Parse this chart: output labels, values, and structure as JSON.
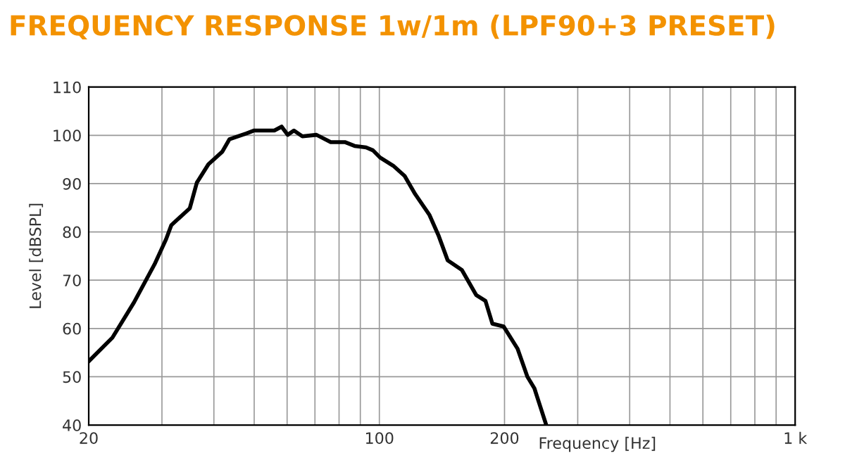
{
  "chart_data": {
    "type": "line",
    "title": "FREQUENCY RESPONSE 1w/1m (LPF90+3 PRESET)",
    "xlabel": "Frequency [Hz]",
    "ylabel": "Level [dBSPL]",
    "log": "x",
    "grid": true,
    "marker": "none",
    "line_style": "solid",
    "xlim": [
      20,
      1000
    ],
    "ylim": [
      40,
      110
    ],
    "xticks": [
      20,
      {
        "value": 30,
        "label": null
      },
      {
        "value": 40,
        "label": null
      },
      {
        "value": 50,
        "label": null
      },
      {
        "value": 60,
        "label": null
      },
      {
        "value": 70,
        "label": null
      },
      {
        "value": 80,
        "label": null
      },
      {
        "value": 90,
        "label": null
      },
      100,
      200,
      {
        "value": 300,
        "label": null
      },
      {
        "value": 400,
        "label": null
      },
      {
        "value": 500,
        "label": null
      },
      {
        "value": 600,
        "label": null
      },
      {
        "value": 700,
        "label": null
      },
      {
        "value": 800,
        "label": null
      },
      {
        "value": 900,
        "label": null
      },
      {
        "value": 1000,
        "label": "1 k"
      }
    ],
    "yticks": [
      40,
      50,
      60,
      70,
      80,
      90,
      100,
      110
    ],
    "x": [
      20,
      22.8,
      25.7,
      28.8,
      30.7,
      31.6,
      35,
      36.4,
      38.8,
      41.9,
      43.6,
      47.9,
      50,
      55.9,
      58.2,
      60.2,
      62.3,
      65.3,
      70.6,
      76.4,
      82.6,
      87.2,
      92.9,
      96.5,
      100.4,
      108,
      115,
      122,
      132,
      139,
      146,
      158,
      171,
      180,
      187,
      199,
      215,
      227,
      236,
      252
    ],
    "series": [
      {
        "color": "#000000",
        "values": [
          53.2,
          58.1,
          65.4,
          73.3,
          78.5,
          81.4,
          84.9,
          90.2,
          94,
          96.6,
          99.2,
          100.4,
          101,
          101,
          101.8,
          100.1,
          101,
          99.8,
          100.1,
          98.6,
          98.6,
          97.8,
          97.5,
          96.9,
          95.4,
          93.7,
          91.6,
          87.8,
          83.5,
          79.1,
          74.1,
          72.1,
          66.9,
          65.7,
          61,
          60.4,
          55.8,
          50,
          47.6,
          40
        ]
      }
    ]
  }
}
